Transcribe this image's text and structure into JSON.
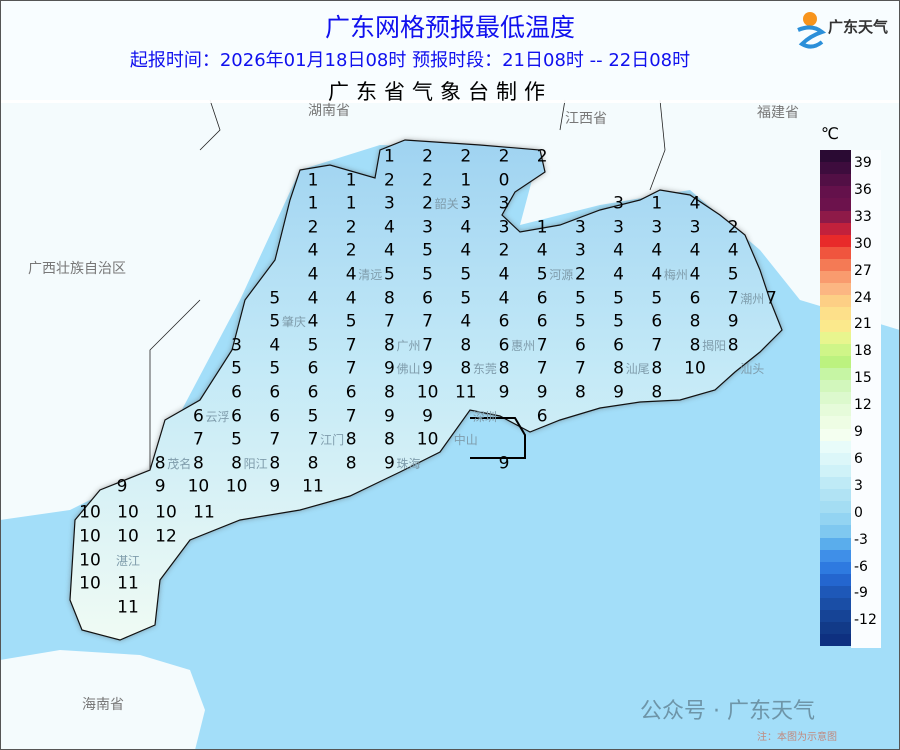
{
  "header": {
    "title": "广东网格预报最低温度",
    "subtitle": "起报时间：2026年01月18日08时   预报时段：21日08时 -- 22日08时",
    "producer": "广东省气象台制作",
    "logo_text": "广东天气"
  },
  "colors": {
    "title": "#1010ee",
    "sea": "#a3def9",
    "land_outside": "#f4fbfd"
  },
  "provinces": [
    "湖南省",
    "江西省",
    "福建省",
    "广西壮族自治区",
    "海南省"
  ],
  "cities": [
    "韶关",
    "清远",
    "河源",
    "梅州",
    "潮州",
    "肇庆",
    "广州",
    "揭阳",
    "汕头",
    "佛山",
    "东莞",
    "惠州",
    "汕尾",
    "云浮",
    "深圳",
    "中山",
    "江门",
    "阳江",
    "茂名",
    "珠海",
    "湛江"
  ],
  "grid_rows": [
    [
      null,
      null,
      null,
      null,
      null,
      null,
      null,
      1,
      2,
      2,
      2,
      2,
      null,
      null,
      null,
      null,
      null,
      null
    ],
    [
      null,
      null,
      null,
      null,
      null,
      1,
      1,
      2,
      2,
      1,
      0,
      null,
      null,
      null,
      null,
      null,
      null,
      null
    ],
    [
      null,
      null,
      null,
      null,
      null,
      1,
      1,
      3,
      2,
      3,
      3,
      null,
      null,
      3,
      1,
      4,
      null,
      null
    ],
    [
      null,
      null,
      null,
      null,
      null,
      2,
      2,
      4,
      3,
      4,
      3,
      1,
      3,
      3,
      3,
      3,
      2,
      null
    ],
    [
      null,
      null,
      null,
      null,
      null,
      4,
      2,
      4,
      5,
      4,
      2,
      4,
      3,
      4,
      4,
      4,
      4,
      null
    ],
    [
      null,
      null,
      null,
      null,
      null,
      4,
      4,
      5,
      5,
      5,
      4,
      5,
      2,
      4,
      4,
      4,
      5,
      null
    ],
    [
      null,
      null,
      null,
      null,
      5,
      4,
      4,
      8,
      6,
      5,
      4,
      6,
      5,
      5,
      5,
      6,
      7,
      7
    ],
    [
      null,
      null,
      null,
      null,
      5,
      4,
      5,
      7,
      7,
      4,
      6,
      6,
      5,
      5,
      6,
      8,
      9,
      null
    ],
    [
      null,
      null,
      null,
      3,
      4,
      5,
      7,
      8,
      7,
      8,
      6,
      7,
      6,
      6,
      7,
      8,
      8,
      null
    ],
    [
      null,
      null,
      null,
      5,
      5,
      6,
      7,
      9,
      9,
      8,
      8,
      7,
      7,
      8,
      8,
      10,
      null,
      null
    ],
    [
      null,
      null,
      null,
      6,
      6,
      6,
      6,
      8,
      10,
      11,
      9,
      9,
      8,
      9,
      8,
      null,
      null,
      null
    ],
    [
      null,
      null,
      6,
      6,
      6,
      5,
      7,
      9,
      9,
      null,
      null,
      6,
      null,
      null,
      null,
      null,
      null,
      null
    ],
    [
      null,
      null,
      7,
      5,
      7,
      7,
      8,
      8,
      10,
      null,
      null,
      null,
      null,
      null,
      null,
      null,
      null,
      null
    ],
    [
      null,
      8,
      8,
      8,
      8,
      8,
      8,
      9,
      null,
      null,
      9,
      null,
      null,
      null,
      null,
      null,
      null,
      null
    ],
    [
      9,
      9,
      10,
      10,
      9,
      11,
      null,
      null,
      null,
      null,
      null,
      null,
      null,
      null,
      null,
      null,
      null,
      null
    ]
  ],
  "southwest_rows": [
    [
      10,
      10,
      10,
      11
    ],
    [
      10,
      10,
      12
    ],
    [
      10
    ],
    [
      10,
      11
    ],
    [
      null,
      11
    ]
  ],
  "legend": {
    "unit": "℃",
    "ticks": [
      "39",
      "36",
      "33",
      "30",
      "27",
      "24",
      "21",
      "18",
      "15",
      "12",
      "9",
      "6",
      "3",
      "0",
      "-3",
      "-6",
      "-9",
      "-12"
    ],
    "colors": [
      "#2a0a33",
      "#3d0c3d",
      "#520f45",
      "#64114b",
      "#6c124c",
      "#8e1a48",
      "#c2213c",
      "#e82a2a",
      "#f0553e",
      "#f47a55",
      "#f99b6e",
      "#fcb682",
      "#fdcf85",
      "#fde08a",
      "#fbe98c",
      "#e8f58e",
      "#cff588",
      "#bcf27f",
      "#c6f5a4",
      "#d2f7bc",
      "#dcf9cd",
      "#e6fbda",
      "#eefde4",
      "#f4fff0",
      "#e8fcfa",
      "#dcf7f9",
      "#cff2f8",
      "#bfeaf6",
      "#b1e3f4",
      "#a4ddf3",
      "#93d4f2",
      "#7fc8f0",
      "#5aadec",
      "#3f8fe8",
      "#2e7ae0",
      "#2466cf",
      "#1e58b8",
      "#1a4ea6",
      "#164496",
      "#123a88",
      "#0e3080"
    ]
  },
  "watermark": {
    "text": "公众号 · 广东天气",
    "note": "注：本图为示意图"
  }
}
